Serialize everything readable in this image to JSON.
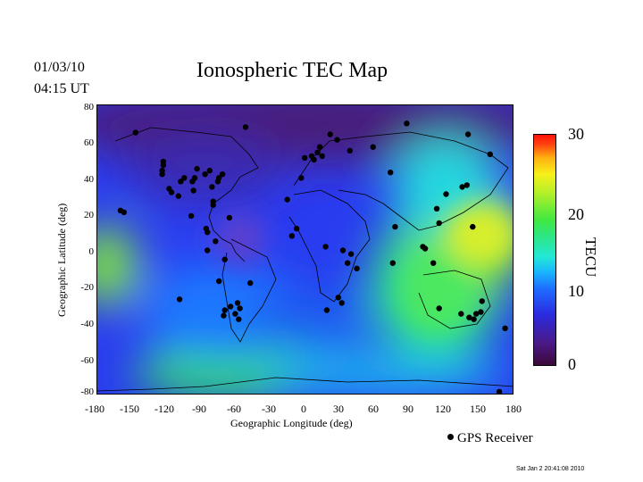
{
  "header": {
    "date": "01/03/10",
    "time": "04:15 UT",
    "title": "Ionospheric TEC Map"
  },
  "axes": {
    "xlabel": "Geographic Longitude (deg)",
    "ylabel": "Geographic Latitude (deg)",
    "xticks": [
      "-180",
      "-150",
      "-120",
      "-90",
      "-60",
      "-30",
      "0",
      "30",
      "60",
      "90",
      "120",
      "150",
      "180"
    ],
    "yticks": [
      "80",
      "60",
      "40",
      "20",
      "0",
      "-20",
      "-40",
      "-60",
      "-80"
    ]
  },
  "colorbar": {
    "label": "TECU",
    "ticks": [
      "30",
      "20",
      "10",
      "0"
    ],
    "range": [
      0,
      30
    ]
  },
  "legend": {
    "label": "GPS Receiver"
  },
  "timestamp": "Sat Jan  2 20:41:08 2010",
  "chart_data": {
    "type": "scatter",
    "title": "Ionospheric TEC Map",
    "xlabel": "Geographic Longitude (deg)",
    "ylabel": "Geographic Latitude (deg)",
    "xlim": [
      -180,
      180
    ],
    "ylim": [
      -80,
      80
    ],
    "colorscale": "TECU 0-30 (purple-blue-cyan-green-yellow-red)",
    "series": [
      {
        "name": "GPS Receiver",
        "points": [
          [
            -147,
            65
          ],
          [
            -157,
            21
          ],
          [
            -160,
            22
          ],
          [
            -123,
            49
          ],
          [
            -123,
            47
          ],
          [
            -124,
            44
          ],
          [
            -124,
            42
          ],
          [
            -108,
            38
          ],
          [
            -105,
            40
          ],
          [
            -98,
            38
          ],
          [
            -97,
            33
          ],
          [
            -96,
            40
          ],
          [
            -94,
            45
          ],
          [
            -87,
            42
          ],
          [
            -81,
            35
          ],
          [
            -80,
            25
          ],
          [
            -75,
            40
          ],
          [
            -72,
            42
          ],
          [
            -83,
            44
          ],
          [
            -76,
            38
          ],
          [
            -80,
            27
          ],
          [
            -66,
            18
          ],
          [
            -52,
            68
          ],
          [
            -118,
            34
          ],
          [
            -116,
            32
          ],
          [
            -110,
            30
          ],
          [
            -99,
            19
          ],
          [
            -86,
            12
          ],
          [
            -85,
            10
          ],
          [
            -78,
            5
          ],
          [
            -70,
            -5
          ],
          [
            -75,
            -17
          ],
          [
            -70,
            -33
          ],
          [
            -71,
            -36
          ],
          [
            -65,
            -31
          ],
          [
            -61,
            -35
          ],
          [
            -57,
            -32
          ],
          [
            -58,
            -38
          ],
          [
            -59,
            -29
          ],
          [
            -48,
            -18
          ],
          [
            -109,
            -27
          ],
          [
            -85,
            0
          ],
          [
            -4,
            40
          ],
          [
            -1,
            51
          ],
          [
            5,
            52
          ],
          [
            7,
            50
          ],
          [
            10,
            54
          ],
          [
            14,
            52
          ],
          [
            12,
            57
          ],
          [
            21,
            64
          ],
          [
            27,
            61
          ],
          [
            38,
            55
          ],
          [
            58,
            57
          ],
          [
            73,
            43
          ],
          [
            87,
            70
          ],
          [
            -16,
            28
          ],
          [
            -12,
            8
          ],
          [
            -8,
            12
          ],
          [
            17,
            2
          ],
          [
            32,
            0
          ],
          [
            39,
            -2
          ],
          [
            28,
            -26
          ],
          [
            31,
            -29
          ],
          [
            18,
            -33
          ],
          [
            36,
            -7
          ],
          [
            44,
            -10
          ],
          [
            75,
            -7
          ],
          [
            77,
            13
          ],
          [
            101,
            2
          ],
          [
            115,
            15
          ],
          [
            121,
            31
          ],
          [
            135,
            35
          ],
          [
            139,
            36
          ],
          [
            140,
            64
          ],
          [
            159,
            53
          ],
          [
            103,
            1
          ],
          [
            110,
            -7
          ],
          [
            115,
            -32
          ],
          [
            134,
            -35
          ],
          [
            141,
            -37
          ],
          [
            145,
            -38
          ],
          [
            147,
            -35
          ],
          [
            151,
            -34
          ],
          [
            152,
            -28
          ],
          [
            172,
            -43
          ],
          [
            167,
            -78
          ],
          [
            144,
            13
          ],
          [
            113,
            23
          ]
        ]
      }
    ]
  }
}
